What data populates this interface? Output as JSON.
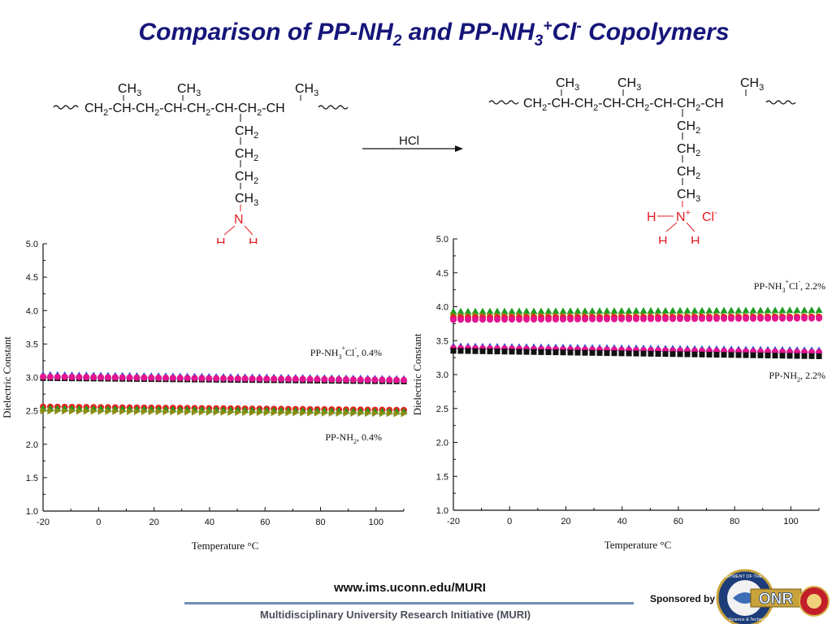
{
  "title": {
    "part1": "Comparison of PP-NH",
    "sub1": "2",
    "part2": " and PP-NH",
    "sub2": "3",
    "sup2": "+",
    "part3": "Cl",
    "sup3": "-",
    "part4": " Copolymers"
  },
  "scheme": {
    "reagent": "HCl",
    "left": {
      "backbone": "CH2-CH-CH2-CH-CH2-CH-CH2-CH",
      "methyls": [
        "CH3",
        "CH3",
        "CH3"
      ],
      "sidechain": [
        "CH2",
        "CH2",
        "CH2",
        "CH3"
      ],
      "amine": "N",
      "h_atoms": [
        "H",
        "H"
      ]
    },
    "right": {
      "backbone": "CH2-CH-CH2-CH-CH2-CH-CH2-CH",
      "methyls": [
        "CH3",
        "CH3",
        "CH3"
      ],
      "sidechain": [
        "CH2",
        "CH2",
        "CH2",
        "CH3"
      ],
      "amine": "N+",
      "h_atoms": [
        "H",
        "H",
        "H"
      ],
      "counterion": "Cl-"
    }
  },
  "colors": {
    "title": "#15157a",
    "chem_red": "#e41e25",
    "series_black": "#111111",
    "series_red": "#e8211f",
    "series_blue": "#2450d8",
    "series_green": "#1f9a22",
    "series_magenta": "#e3158f",
    "series_olive": "#8c8c14"
  },
  "chart_data": [
    {
      "type": "scatter",
      "xlabel": "Temperature °C",
      "ylabel": "Dielectric Constant",
      "xlim": [
        -20,
        110
      ],
      "ylim": [
        1.0,
        5.0
      ],
      "xticks": [
        "-20",
        "0",
        "20",
        "40",
        "60",
        "80",
        "100"
      ],
      "yticks": [
        "1.0",
        "1.5",
        "2.0",
        "2.5",
        "3.0",
        "3.5",
        "4.0",
        "4.5",
        "5.0"
      ],
      "grid": false,
      "annotations": [
        {
          "text_main": "PP-NH",
          "text_sub": "3",
          "text_sup": "+",
          "text_ion": "Cl",
          "text_ion_sup": "-",
          "text_tail": ", 0.4%",
          "y": 3.32
        },
        {
          "text_main": "PP-NH",
          "text_sub": "2",
          "text_tail": ", 0.4%",
          "y": 2.06
        }
      ],
      "series": [
        {
          "color": "#2450d8",
          "marker": "triangle-up",
          "x": [
            -20,
            110
          ],
          "y": [
            3.04,
            2.98
          ]
        },
        {
          "color": "#111111",
          "marker": "square",
          "x": [
            -20,
            110
          ],
          "y": [
            2.99,
            2.94
          ]
        },
        {
          "color": "#e3158f",
          "marker": "circle",
          "x": [
            -20,
            110
          ],
          "y": [
            3.01,
            2.96
          ]
        },
        {
          "color": "#e8211f",
          "marker": "circle",
          "x": [
            -20,
            110
          ],
          "y": [
            2.56,
            2.51
          ]
        },
        {
          "color": "#1f9a22",
          "marker": "triangle-up",
          "x": [
            -20,
            110
          ],
          "y": [
            2.54,
            2.49
          ]
        },
        {
          "color": "#8c8c14",
          "marker": "triangle-right",
          "x": [
            -20,
            110
          ],
          "y": [
            2.5,
            2.46
          ]
        }
      ]
    },
    {
      "type": "scatter",
      "xlabel": "Temperature °C",
      "ylabel": "Dielectric Constant",
      "xlim": [
        -20,
        110
      ],
      "ylim": [
        1.0,
        5.0
      ],
      "xticks": [
        "-20",
        "0",
        "20",
        "40",
        "60",
        "80",
        "100"
      ],
      "yticks": [
        "1.0",
        "1.5",
        "2.0",
        "2.5",
        "3.0",
        "3.5",
        "4.0",
        "4.5",
        "5.0"
      ],
      "grid": false,
      "annotations": [
        {
          "text_main": "PP-NH",
          "text_sub": "3",
          "text_sup": "+",
          "text_ion": "Cl",
          "text_ion_sup": "-",
          "text_tail": ", 2.2%",
          "y": 4.26
        },
        {
          "text_main": "PP-NH",
          "text_sub": "2",
          "text_tail": ", 2.2%",
          "y": 2.94
        }
      ],
      "series": [
        {
          "color": "#1f9a22",
          "marker": "triangle-up",
          "x": [
            -20,
            110
          ],
          "y": [
            3.93,
            3.95
          ]
        },
        {
          "color": "#8c8c14",
          "marker": "triangle-right",
          "x": [
            -20,
            110
          ],
          "y": [
            3.87,
            3.86
          ]
        },
        {
          "color": "#e8211f",
          "marker": "circle",
          "x": [
            -20,
            110
          ],
          "y": [
            3.84,
            3.85
          ]
        },
        {
          "color": "#e3158f",
          "marker": "circle",
          "x": [
            -20,
            110
          ],
          "y": [
            3.81,
            3.83
          ]
        },
        {
          "color": "#2450d8",
          "marker": "triangle-up",
          "x": [
            -20,
            110
          ],
          "y": [
            3.42,
            3.36
          ]
        },
        {
          "color": "#e3158f",
          "marker": "circle",
          "x": [
            -20,
            110
          ],
          "y": [
            3.39,
            3.33
          ]
        },
        {
          "color": "#111111",
          "marker": "square",
          "x": [
            -20,
            110
          ],
          "y": [
            3.35,
            3.27
          ]
        }
      ]
    }
  ],
  "footer": {
    "url": "www.ims.uconn.edu/MURI",
    "initiative": "Multidisciplinary University Research Initiative (MURI)",
    "sponsored_by": "Sponsored by",
    "seal_top_text": "DEPARTMENT OF THE NAVY",
    "seal_bottom_text": "Science & Technology",
    "logo_text": "ONR"
  }
}
